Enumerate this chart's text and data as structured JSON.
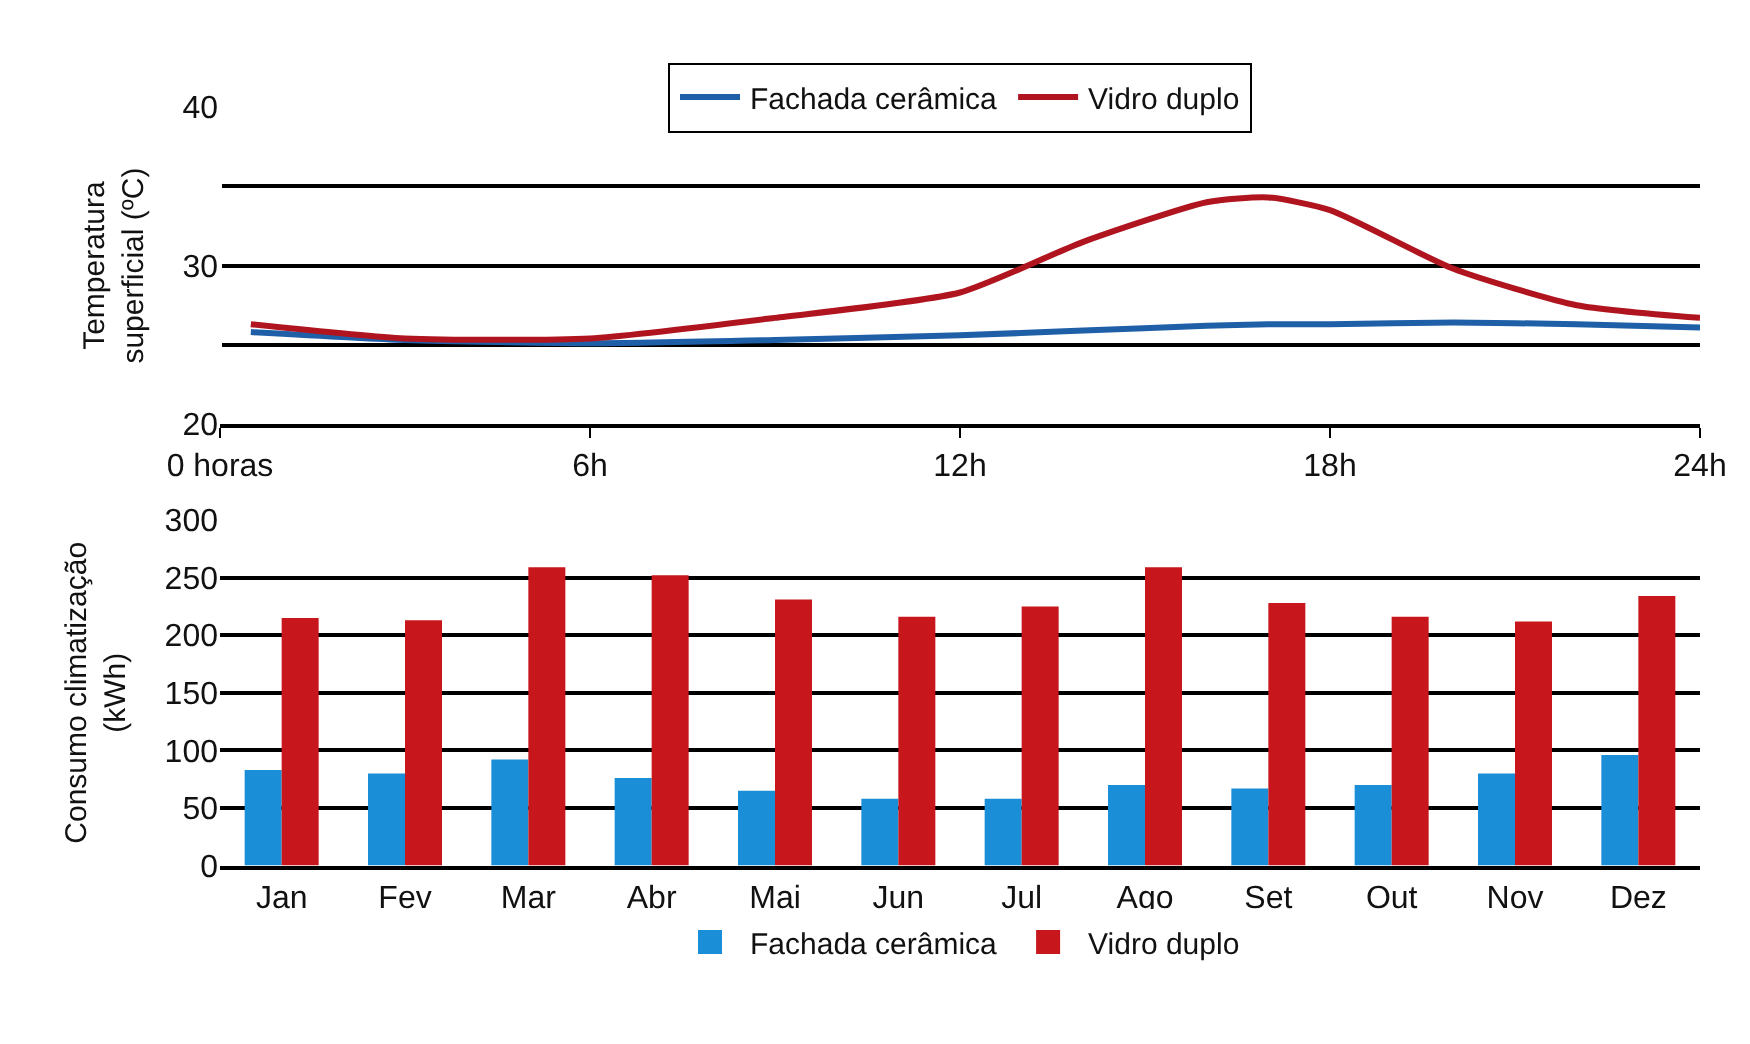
{
  "chart_data": [
    {
      "type": "line",
      "ylabel": "Temperatura\nsuperficial (ºC)",
      "x": [
        0.5,
        3,
        6,
        9,
        12,
        14,
        16,
        17,
        18,
        20,
        22,
        24
      ],
      "series": [
        {
          "name": "Fachada cerâmica",
          "color": "#1f5fa8",
          "values": [
            25.8,
            25.3,
            25.1,
            25.3,
            25.6,
            25.9,
            26.2,
            26.3,
            26.3,
            26.4,
            26.3,
            26.1
          ]
        },
        {
          "name": "Vidro duplo",
          "color": "#b0151f",
          "values": [
            26.3,
            25.4,
            25.4,
            26.7,
            28.3,
            31.5,
            34.0,
            34.3,
            33.5,
            29.8,
            27.5,
            26.7
          ]
        }
      ],
      "xlim": [
        0,
        24
      ],
      "xticks": [
        {
          "value": 0,
          "label": "0 horas"
        },
        {
          "value": 6,
          "label": "6h"
        },
        {
          "value": 12,
          "label": "12h"
        },
        {
          "value": 18,
          "label": "18h"
        },
        {
          "value": 24,
          "label": "24h"
        }
      ],
      "ylim": [
        20,
        40
      ],
      "yticks": [
        20,
        {
          "value": 25,
          "label": null
        },
        30,
        {
          "value": 35,
          "label": null
        },
        40
      ],
      "grid": "y",
      "legend": "top",
      "marker": "none",
      "line_style": "solid"
    },
    {
      "type": "bar",
      "ylabel": "Consumo climatização\n(kWh)",
      "categories": [
        "Jan",
        "Fev",
        "Mar",
        "Abr",
        "Mai",
        "Jun",
        "Jul",
        "Ago",
        "Set",
        "Out",
        "Nov",
        "Dez"
      ],
      "series": [
        {
          "name": "Fachada cerâmica",
          "color": "#1a8fd8",
          "values": [
            83,
            80,
            92,
            76,
            65,
            58,
            58,
            70,
            67,
            70,
            80,
            96
          ]
        },
        {
          "name": "Vidro duplo",
          "color": "#c8161d",
          "values": [
            215,
            213,
            259,
            252,
            231,
            216,
            225,
            259,
            228,
            216,
            212,
            234
          ]
        }
      ],
      "ylim": [
        0,
        300
      ],
      "yticks": [
        0,
        50,
        100,
        150,
        200,
        250,
        300
      ],
      "grid": "y",
      "legend": "bottom"
    }
  ]
}
